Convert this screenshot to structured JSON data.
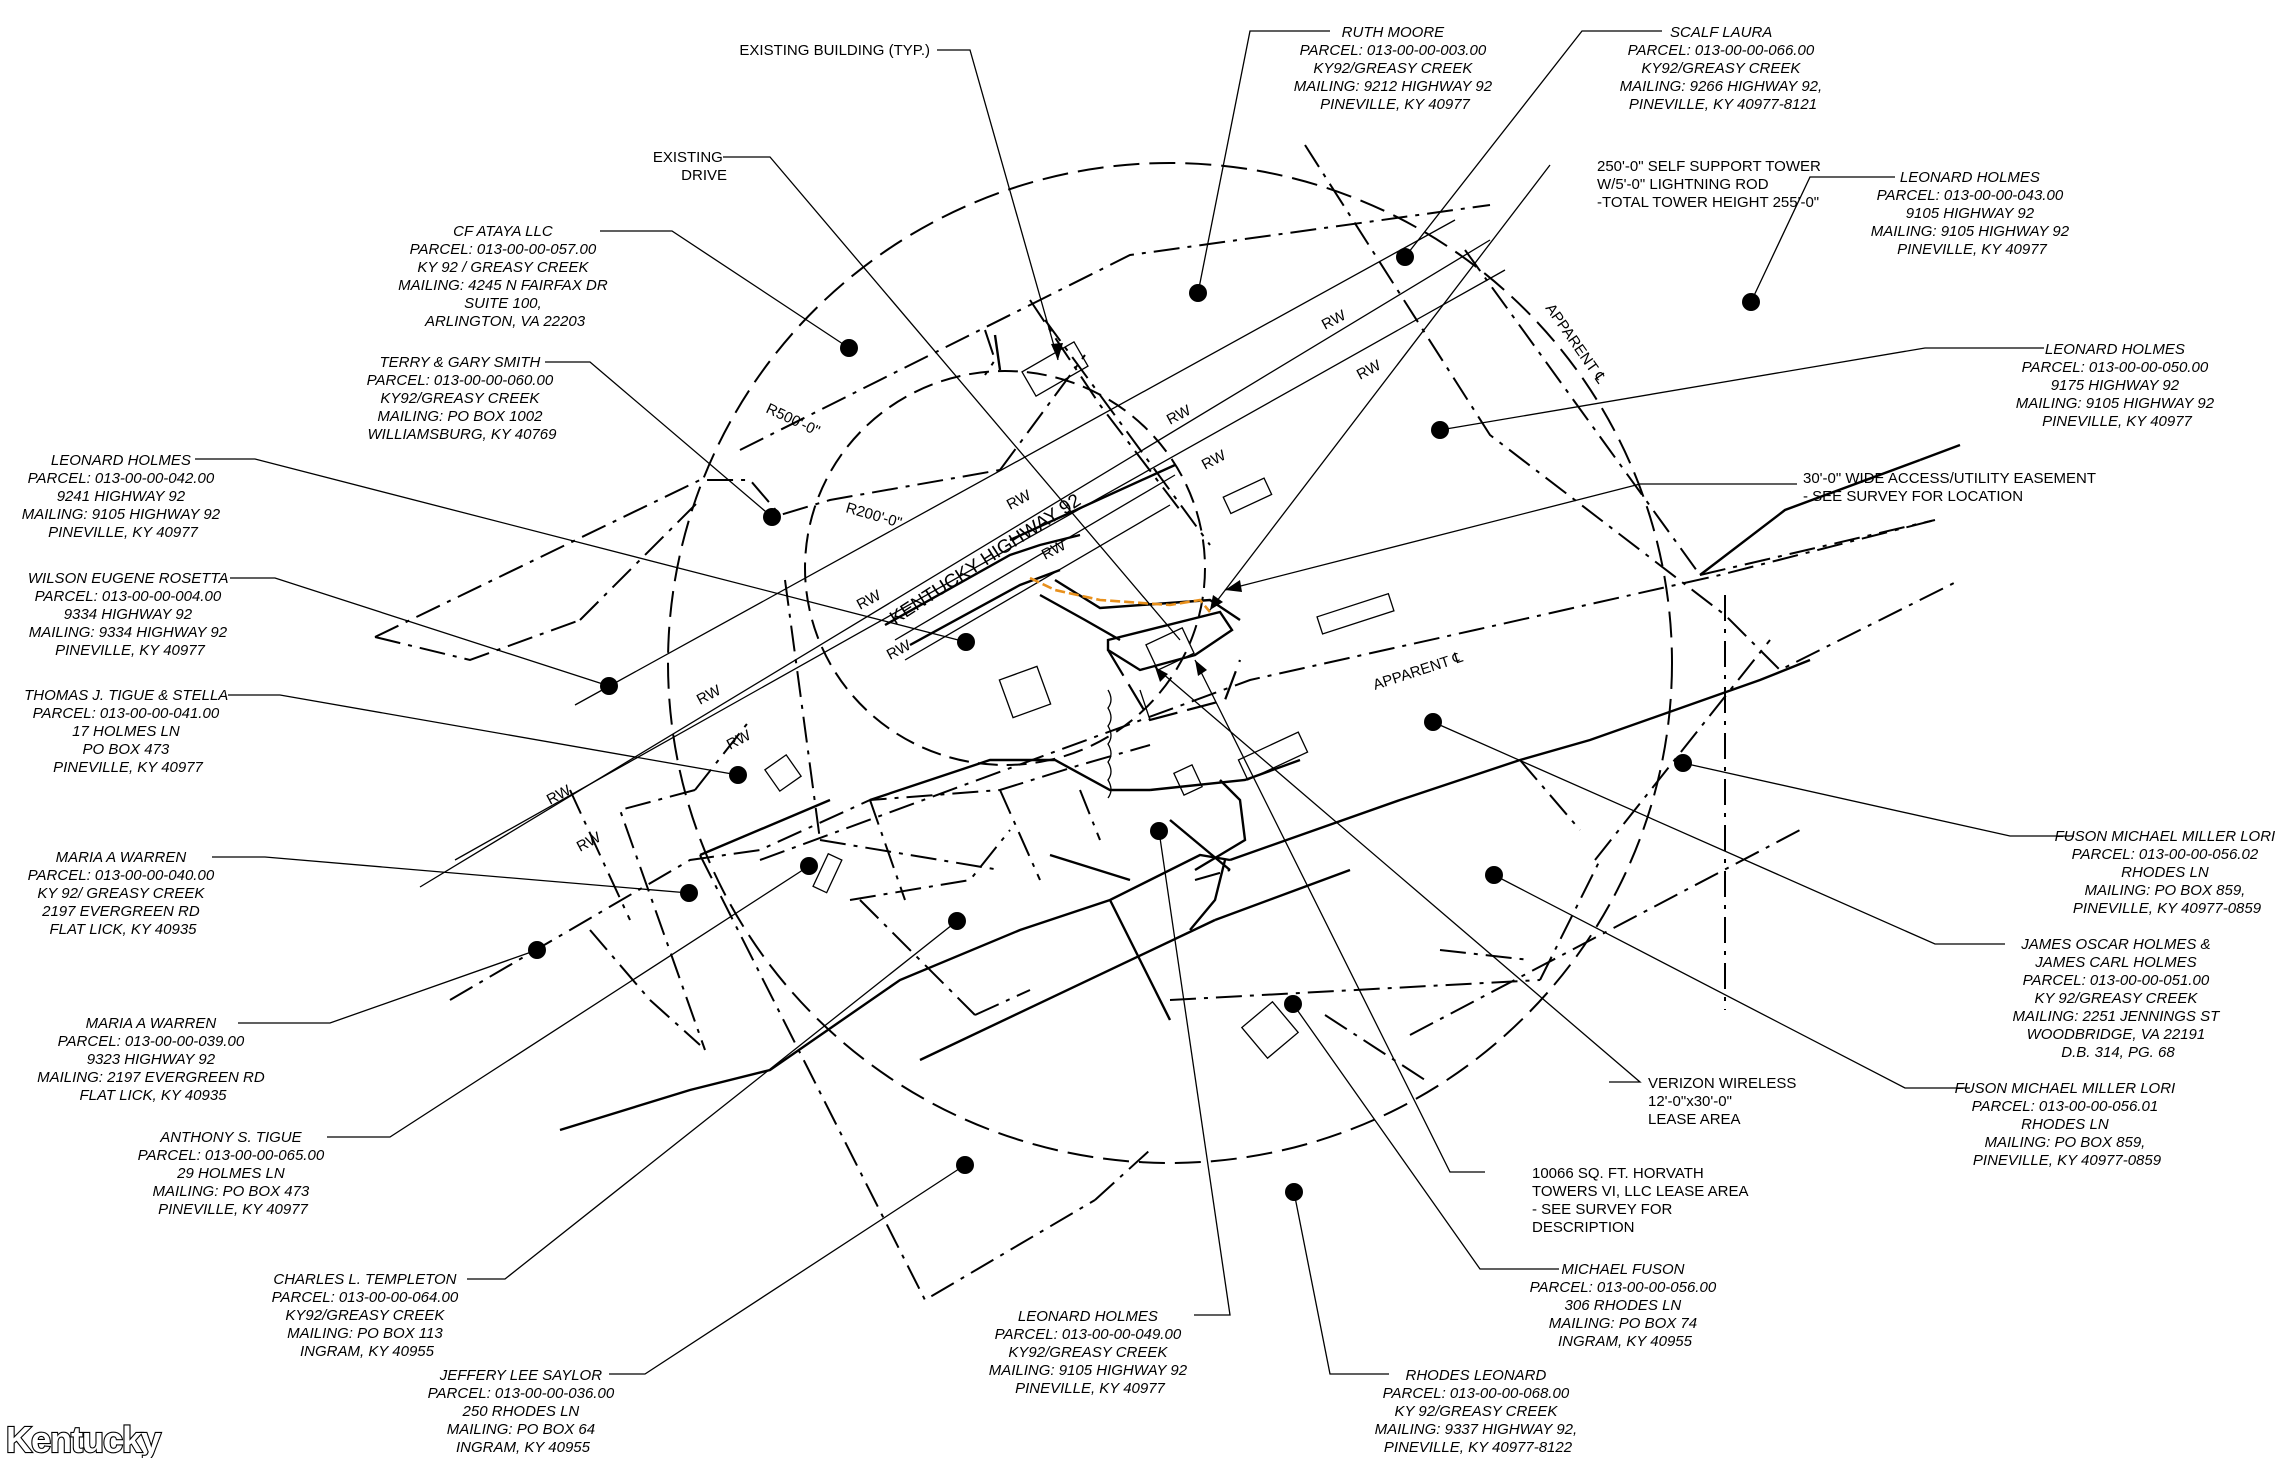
{
  "labels": {
    "existing_building": "EXISTING BUILDING (TYP.)",
    "existing_drive": [
      "EXISTING",
      "DRIVE"
    ],
    "tower": [
      "250'-0\" SELF SUPPORT TOWER",
      "W/5'-0\" LIGHTNING ROD",
      "-TOTAL TOWER HEIGHT 255'-0\""
    ],
    "easement": [
      "30'-0\" WIDE ACCESS/UTILITY EASEMENT",
      "- SEE SURVEY FOR LOCATION"
    ],
    "verizon": [
      "VERIZON WIRELESS",
      "12'-0\"x30'-0\"",
      "LEASE AREA"
    ],
    "horvath": [
      "10066 SQ. FT. HORVATH",
      "TOWERS VI, LLC LEASE AREA",
      "- SEE SURVEY FOR",
      "DESCRIPTION"
    ]
  },
  "map_text": {
    "r500": "R500'-0\"",
    "r200": "R200'-0\"",
    "highway": "KENTUCKY HIGHWAY 92",
    "apparent": "APPARENT ℄",
    "rw": "RW"
  },
  "owners": {
    "ruth_moore": [
      "RUTH MOORE",
      "PARCEL: 013-00-00-003.00",
      "KY92/GREASY CREEK",
      "MAILING: 9212 HIGHWAY 92",
      "PINEVILLE, KY 40977"
    ],
    "scalf_laura": [
      "SCALF LAURA",
      "PARCEL: 013-00-00-066.00",
      "KY92/GREASY CREEK",
      "MAILING: 9266 HIGHWAY 92,",
      "PINEVILLE, KY 40977-8121"
    ],
    "leonard_043": [
      "LEONARD HOLMES",
      "PARCEL: 013-00-00-043.00",
      "9105 HIGHWAY 92",
      "MAILING: 9105 HIGHWAY 92",
      "PINEVILLE, KY 40977"
    ],
    "leonard_050": [
      "LEONARD HOLMES",
      "PARCEL: 013-00-00-050.00",
      "9175 HIGHWAY 92",
      "MAILING: 9105 HIGHWAY 92",
      "PINEVILLE, KY 40977"
    ],
    "cf_ataya": [
      "CF ATAYA LLC",
      "PARCEL: 013-00-00-057.00",
      "KY 92 / GREASY CREEK",
      "MAILING: 4245 N FAIRFAX DR",
      "SUITE 100,",
      "ARLINGTON, VA 22203"
    ],
    "smith": [
      "TERRY & GARY SMITH",
      "PARCEL: 013-00-00-060.00",
      "KY92/GREASY CREEK",
      "MAILING: PO BOX 1002",
      "WILLIAMSBURG, KY 40769"
    ],
    "leonard_042": [
      "LEONARD HOLMES",
      "PARCEL: 013-00-00-042.00",
      "9241 HIGHWAY 92",
      "MAILING: 9105 HIGHWAY 92",
      "PINEVILLE, KY 40977"
    ],
    "rosetta": [
      "WILSON EUGENE ROSETTA",
      "PARCEL: 013-00-00-004.00",
      "9334 HIGHWAY 92",
      "MAILING: 9334 HIGHWAY 92",
      "PINEVILLE, KY 40977"
    ],
    "tigue_stella": [
      "THOMAS J. TIGUE & STELLA",
      "PARCEL: 013-00-00-041.00",
      "17 HOLMES LN",
      "PO BOX 473",
      "PINEVILLE, KY 40977"
    ],
    "warren_040": [
      "MARIA A WARREN",
      "PARCEL: 013-00-00-040.00",
      "KY 92/ GREASY CREEK",
      "2197 EVERGREEN RD",
      "FLAT LICK, KY 40935"
    ],
    "warren_039": [
      "MARIA A WARREN",
      "PARCEL: 013-00-00-039.00",
      "9323 HIGHWAY 92",
      "MAILING: 2197 EVERGREEN RD",
      "FLAT LICK, KY 40935"
    ],
    "anthony_tigue": [
      "ANTHONY S. TIGUE",
      "PARCEL: 013-00-00-065.00",
      "29 HOLMES LN",
      "MAILING: PO BOX 473",
      "PINEVILLE, KY 40977"
    ],
    "templeton": [
      "CHARLES L. TEMPLETON",
      "PARCEL: 013-00-00-064.00",
      "KY92/GREASY CREEK",
      "MAILING: PO BOX 113",
      "INGRAM, KY 40955"
    ],
    "saylor": [
      "JEFFERY LEE SAYLOR",
      "PARCEL: 013-00-00-036.00",
      "250 RHODES LN",
      "MAILING: PO BOX 64",
      "INGRAM, KY 40955"
    ],
    "leonard_049": [
      "LEONARD HOLMES",
      "PARCEL: 013-00-00-049.00",
      "KY92/GREASY CREEK",
      "MAILING: 9105 HIGHWAY 92",
      "PINEVILLE, KY 40977"
    ],
    "rhodes": [
      "RHODES LEONARD",
      "PARCEL: 013-00-00-068.00",
      "KY 92/GREASY CREEK",
      "MAILING: 9337 HIGHWAY 92,",
      "PINEVILLE, KY 40977-8122"
    ],
    "michael_fuson": [
      "MICHAEL FUSON",
      "PARCEL: 013-00-00-056.00",
      "306 RHODES LN",
      "MAILING: PO BOX 74",
      "INGRAM, KY 40955"
    ],
    "fuson_002": [
      "FUSON MICHAEL MILLER LORI",
      "PARCEL: 013-00-00-056.02",
      "RHODES LN",
      "MAILING: PO BOX 859,",
      "PINEVILLE, KY 40977-0859"
    ],
    "holmes_051": [
      "JAMES OSCAR HOLMES &",
      "JAMES CARL HOLMES",
      "PARCEL: 013-00-00-051.00",
      "KY 92/GREASY CREEK",
      "MAILING: 2251 JENNINGS ST",
      "WOODBRIDGE, VA 22191",
      "D.B. 314, PG. 68"
    ],
    "fuson_001": [
      "FUSON MICHAEL MILLER LORI",
      "PARCEL: 013-00-00-056.01",
      "RHODES LN",
      "MAILING: PO BOX 859,",
      "PINEVILLE, KY 40977-0859"
    ]
  },
  "logo": "Kentucky",
  "colors": {
    "line": "#000000",
    "access_route": "#e8901c",
    "background": "#ffffff"
  }
}
